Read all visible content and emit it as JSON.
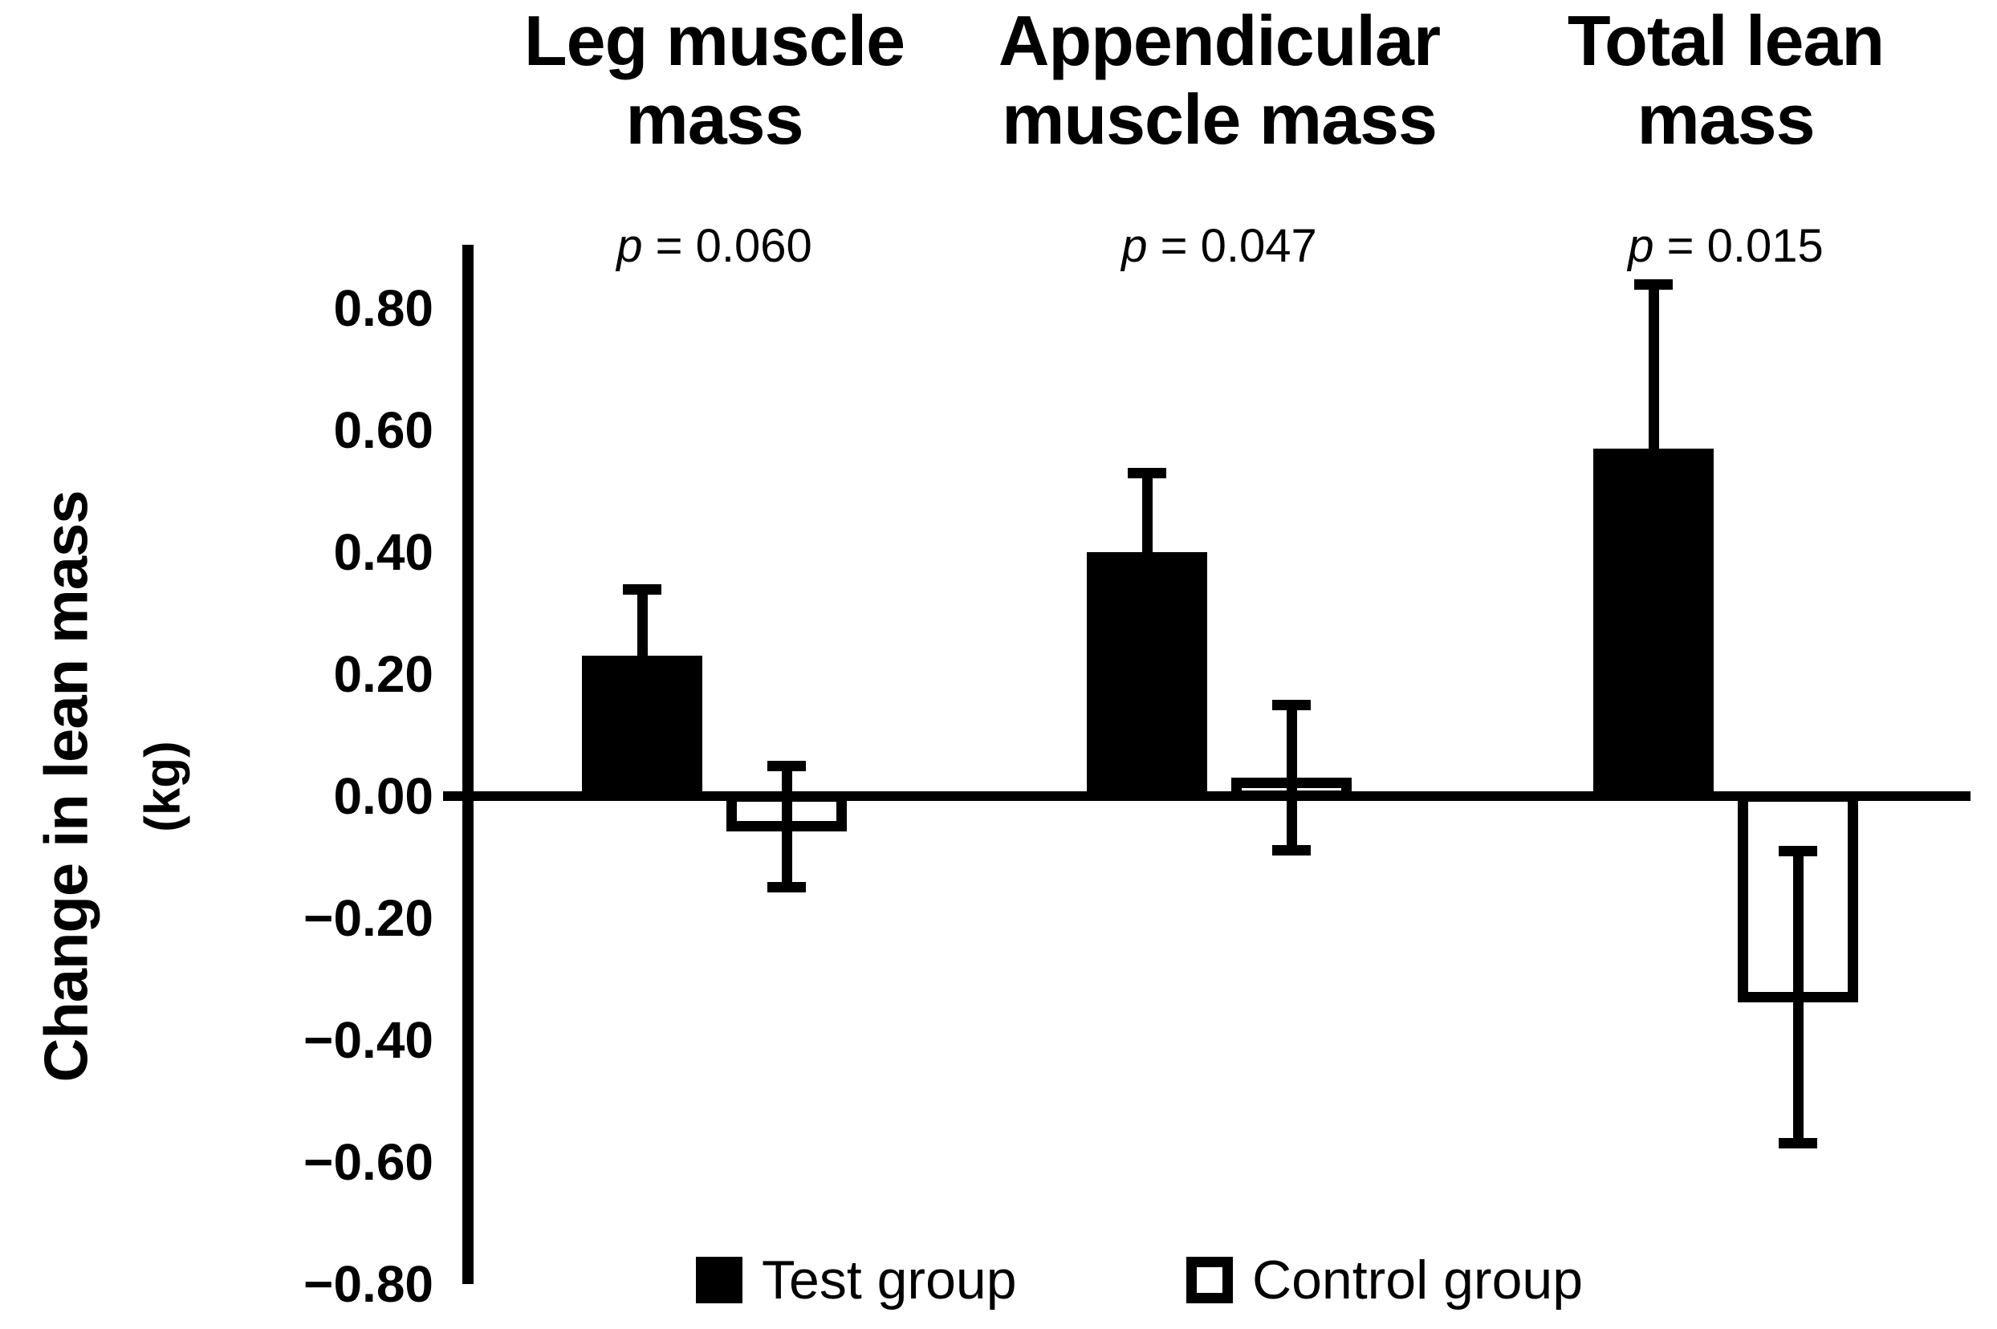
{
  "figure": {
    "ylabel_line1": "Change in lean mass",
    "ylabel_line2": "(kg)"
  },
  "legend": {
    "items": [
      {
        "label": "Test group",
        "swatch": "filled-black-square"
      },
      {
        "label": "Control group",
        "swatch": "outlined-white-square"
      }
    ]
  },
  "chart_data": {
    "type": "bar",
    "title": "",
    "ylabel": "Change in lean mass (kg)",
    "xlabel": "",
    "ylim": [
      -0.8,
      0.9
    ],
    "grid": false,
    "legend_position": "bottom",
    "background_color": "#ffffff",
    "bar_fill_color": "#000000",
    "bar_outline_color": "#000000",
    "categories": [
      "Leg muscle mass",
      "Appendicular muscle mass",
      "Total lean mass"
    ],
    "category_label_lines": [
      [
        "Leg muscle",
        "mass"
      ],
      [
        "Appendicular",
        "muscle mass"
      ],
      [
        "Total lean",
        "mass"
      ]
    ],
    "p_label": "p",
    "p_values": [
      "0.060",
      "0.047",
      "0.015"
    ],
    "p_texts": [
      "p = 0.060",
      "p = 0.047",
      "p = 0.015"
    ],
    "ytick_values": [
      0.8,
      0.6,
      0.4,
      0.2,
      0.0,
      -0.2,
      -0.4,
      -0.6,
      -0.8
    ],
    "ytick_labels": [
      "0.80",
      "0.60",
      "0.40",
      "0.20",
      "0.00",
      "−0.20",
      "−0.40",
      "−0.60",
      "−0.80"
    ],
    "series": [
      {
        "name": "Test group",
        "style": "solid",
        "values": [
          0.23,
          0.4,
          0.57
        ],
        "error": [
          0.11,
          0.13,
          0.27
        ]
      },
      {
        "name": "Control group",
        "style": "outline",
        "values": [
          -0.05,
          0.03,
          -0.33
        ],
        "error": [
          0.1,
          0.12,
          0.24
        ]
      }
    ]
  }
}
